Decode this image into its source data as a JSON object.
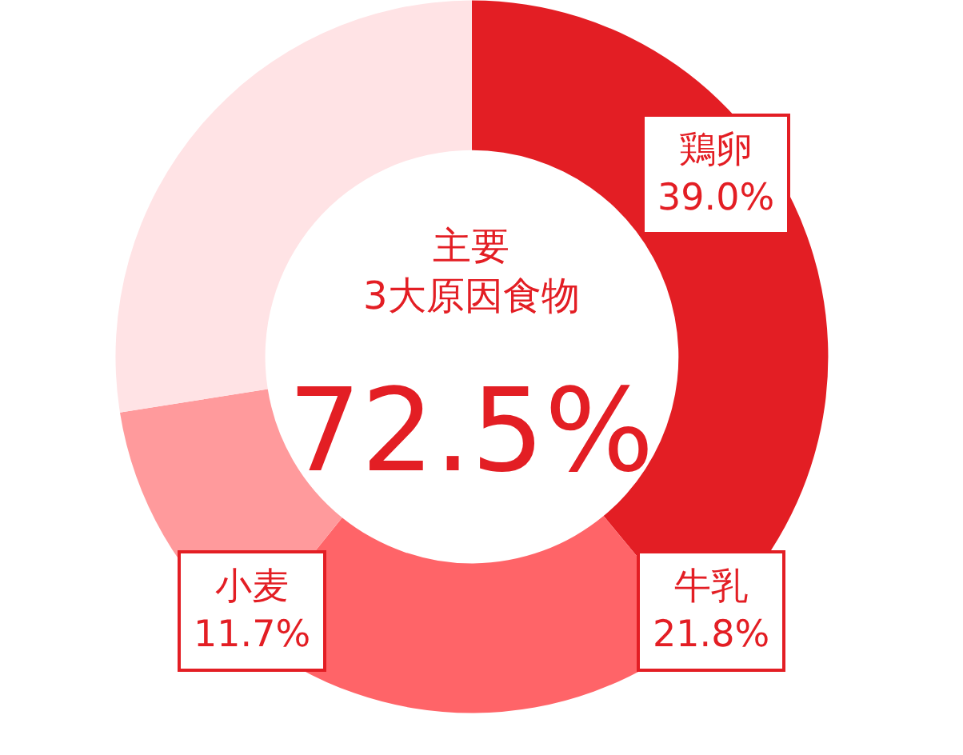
{
  "chart_data": {
    "type": "donut",
    "title": "主要\n3大原因食物",
    "annotations": [
      "72.5%"
    ],
    "categories": [
      "鶏卵",
      "牛乳",
      "小麦",
      null
    ],
    "values": [
      39.0,
      21.8,
      11.7,
      27.5
    ],
    "value_labels": [
      "39.0%",
      "21.8%",
      "11.7%",
      null
    ],
    "colors": [
      "#e31e24",
      "#ff6468",
      "#ff9a9c",
      "#ffe3e5"
    ],
    "legend": false
  }
}
